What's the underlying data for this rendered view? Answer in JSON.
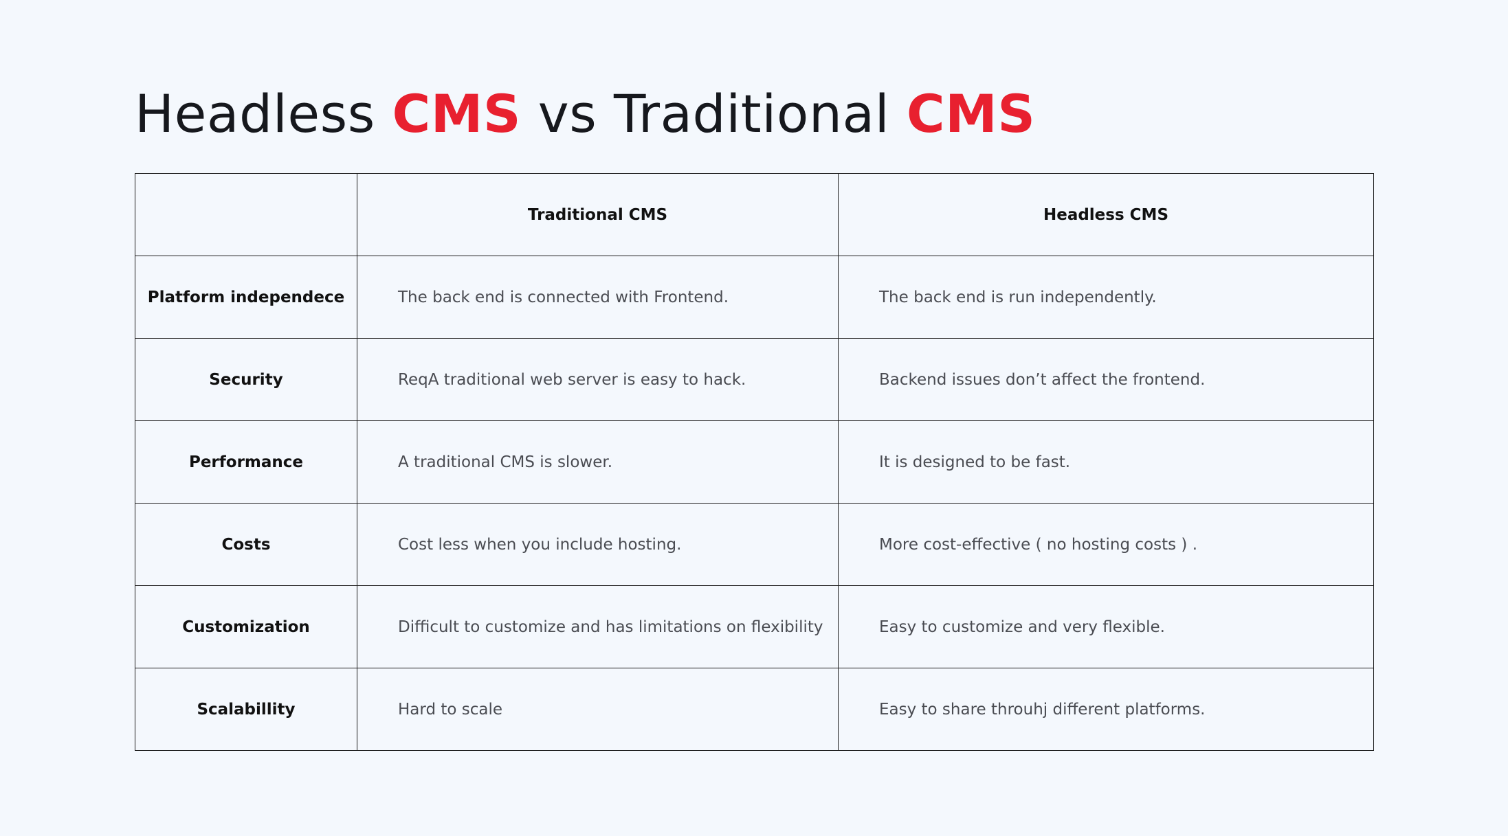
{
  "title": {
    "part1": "Headless ",
    "accent1": "CMS",
    "part2": " vs Traditional ",
    "accent2": "CMS"
  },
  "colors": {
    "accent": "#e8202f",
    "background": "#f4f8fd",
    "text": "#16181d",
    "muted_text": "#4a4c52"
  },
  "table": {
    "headers": [
      "",
      "Traditional CMS",
      "Headless CMS"
    ],
    "rows": [
      {
        "label": "Platform independece",
        "traditional": "The back end is connected with Frontend.",
        "headless": "The back end is run independently."
      },
      {
        "label": "Security",
        "traditional": "ReqA traditional web server is easy to hack.",
        "headless": "Backend issues don’t affect the frontend."
      },
      {
        "label": "Performance",
        "traditional": "A traditional CMS is slower.",
        "headless": "It is designed to be fast."
      },
      {
        "label": "Costs",
        "traditional": "Cost less when you include hosting.",
        "headless": "More cost-effective ( no hosting costs ) ."
      },
      {
        "label": "Customization",
        "traditional": "Difficult to customize and has limitations on flexibility",
        "headless": "Easy to customize and very flexible."
      },
      {
        "label": "Scalabillity",
        "traditional": "Hard to scale",
        "headless": "Easy to share throuhj different platforms."
      }
    ]
  }
}
